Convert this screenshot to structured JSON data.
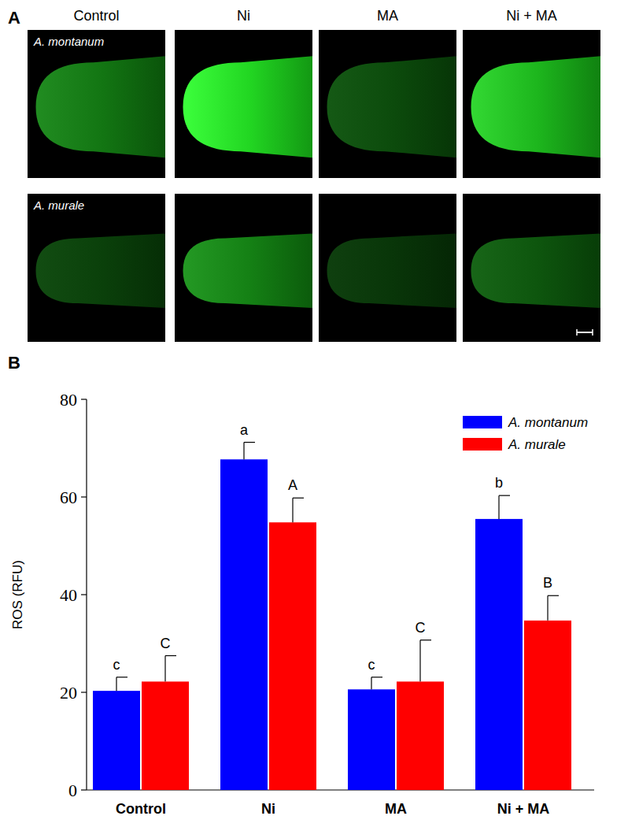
{
  "panel_labels": [
    "A",
    "B"
  ],
  "panel_a": {
    "columns": [
      "Control",
      "Ni",
      "MA",
      "Ni + MA"
    ],
    "rows": [
      "A. montanum",
      "A. murale"
    ]
  },
  "chart_data": {
    "type": "bar",
    "categories": [
      "Control",
      "Ni",
      "MA",
      "Ni + MA"
    ],
    "y_label": "ROS (RFU)",
    "ylim": [
      0,
      80
    ],
    "yticks": [
      0,
      20,
      40,
      60,
      80
    ],
    "grid": false,
    "legend": "top-right",
    "series": [
      {
        "name": "A. montanum",
        "color": "#0000ff",
        "values": [
          20.3,
          67.7,
          20.6,
          55.5
        ],
        "errors": [
          2.8,
          3.5,
          2.5,
          4.8
        ],
        "letters": [
          "c",
          "a",
          "c",
          "b"
        ]
      },
      {
        "name": "A. murale",
        "color": "#ff0000",
        "values": [
          22.2,
          54.8,
          22.2,
          34.7
        ],
        "errors": [
          5.3,
          5.0,
          8.5,
          5.1
        ],
        "letters": [
          "C",
          "A",
          "C",
          "B"
        ]
      }
    ]
  }
}
